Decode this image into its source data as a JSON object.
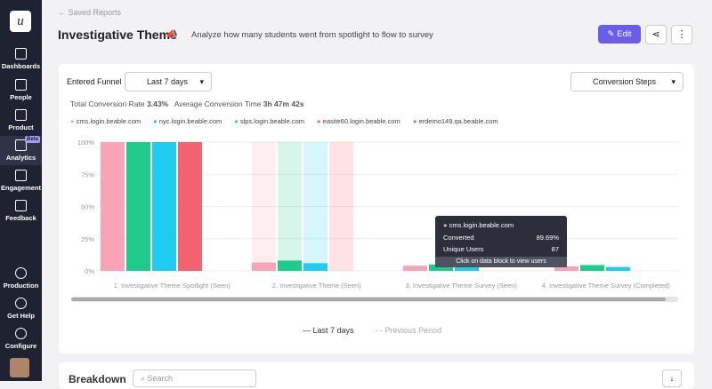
{
  "sidebar": {
    "logo": "u",
    "items": [
      "Dashboards",
      "People",
      "Product",
      "Analytics",
      "Engagement",
      "Feedback"
    ],
    "badge": "Beta",
    "bottom_items": [
      "Production",
      "Get Help",
      "Configure"
    ]
  },
  "header": {
    "back": "Saved Reports",
    "title": "Investigative Theme",
    "subtitle": "Analyze how many students went from spotlight to flow to survey",
    "edit": "Edit"
  },
  "controls": {
    "entered_funnel": "Entered Funnel",
    "range": "Last 7 days",
    "view": "Conversion Steps"
  },
  "summary": {
    "rate_label": "Total Conversion Rate",
    "rate": "3.43%",
    "time_label": "Average Conversion Time",
    "time": "3h 47m 42s"
  },
  "funnel_chart": {
    "type": "bar",
    "categories": [
      "1. Investigative Theme Spotlight (Seen)",
      "2. Investigative Theme (Seen)",
      "3. Investigative Theme Survey (Seen)",
      "4. Investigative Theme Survey (Completed)"
    ],
    "series": [
      {
        "name": "cms.login.beable.com",
        "color": "#f7a3b8",
        "values": [
          100,
          6.5,
          4,
          3.5
        ]
      },
      {
        "name": "nyc.login.beable.com",
        "color": "#1fcb8b",
        "values": [
          100,
          8,
          5,
          4.5
        ]
      },
      {
        "name": "slps.login.beable.com",
        "color": "#1fcbf0",
        "values": [
          100,
          6,
          3.5,
          3
        ]
      },
      {
        "name": "easite60.login.beable.com",
        "color": "#f2636f",
        "values": [
          100,
          0,
          0,
          0
        ]
      },
      {
        "name": "erdemo149.qa.beable.com",
        "color": "#d9666a",
        "values": [
          0,
          0,
          0,
          0
        ]
      }
    ],
    "ylim": [
      0,
      100
    ],
    "yticks": [
      {
        "value": 0,
        "label": "0%"
      },
      {
        "value": 25,
        "label": "25%"
      },
      {
        "value": 50,
        "label": "50%"
      },
      {
        "value": 75,
        "label": "75%"
      },
      {
        "value": 100,
        "label": "100%"
      }
    ],
    "grid": true,
    "periods": [
      "Last 7 days",
      "Previous Period"
    ]
  },
  "tooltip": {
    "title": "cms.login.beable.com",
    "rows": [
      [
        "Converted",
        "89.69%"
      ],
      [
        "Unique Users",
        "87"
      ]
    ],
    "hint": "Click on data block to view users"
  },
  "breakdown": {
    "title": "Breakdown",
    "search": "Search"
  }
}
